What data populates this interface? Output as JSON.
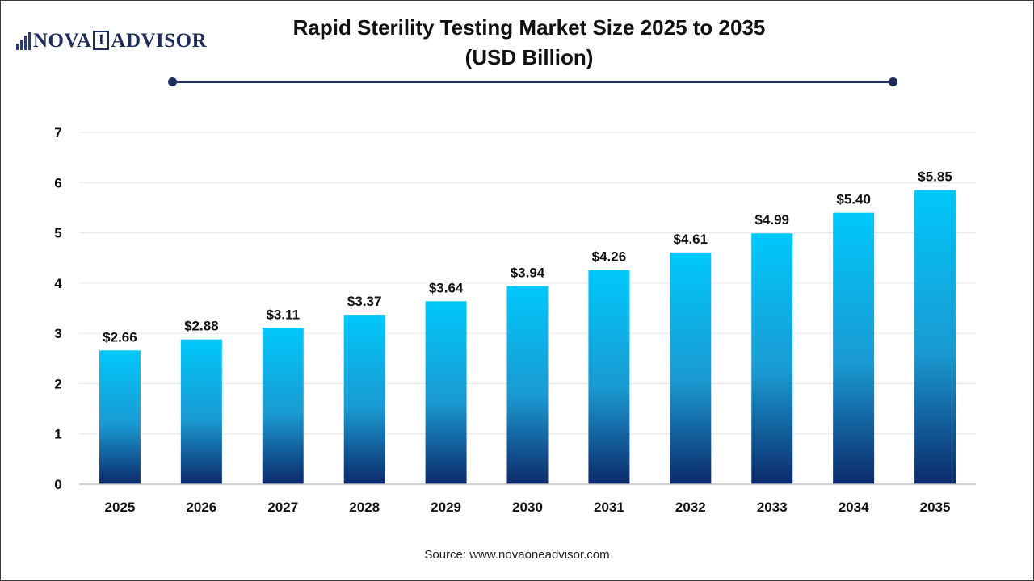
{
  "logo": {
    "text_before": "NOVA",
    "text_box": "1",
    "text_after": "ADVISOR"
  },
  "header": {
    "title_line1": "Rapid Sterility Testing Market Size 2025 to 2035",
    "title_line2": "(USD Billion)"
  },
  "chart_data": {
    "type": "bar",
    "title": "Rapid Sterility Testing Market Size 2025 to 2035 (USD Billion)",
    "categories": [
      "2025",
      "2026",
      "2027",
      "2028",
      "2029",
      "2030",
      "2031",
      "2032",
      "2033",
      "2034",
      "2035"
    ],
    "values": [
      2.66,
      2.88,
      3.11,
      3.37,
      3.64,
      3.94,
      4.26,
      4.61,
      4.99,
      5.4,
      5.85
    ],
    "value_labels": [
      "$2.66",
      "$2.88",
      "$3.11",
      "$3.37",
      "$3.64",
      "$3.94",
      "$4.26",
      "$4.61",
      "$4.99",
      "$5.40",
      "$5.85"
    ],
    "yticks": [
      "0",
      "1",
      "2",
      "3",
      "4",
      "5",
      "6",
      "7"
    ],
    "ylim": [
      0,
      7
    ],
    "xlabel": "",
    "ylabel": "",
    "grid": true,
    "legend": "none",
    "colors": {
      "bar_top": "#00c8fb",
      "bar_mid": "#1a9ad2",
      "bar_bottom": "#0c2a6b",
      "grid": "#e6e6e6",
      "axis": "#bfbfbf"
    }
  },
  "footer": {
    "source": "Source: www.novaoneadvisor.com"
  }
}
